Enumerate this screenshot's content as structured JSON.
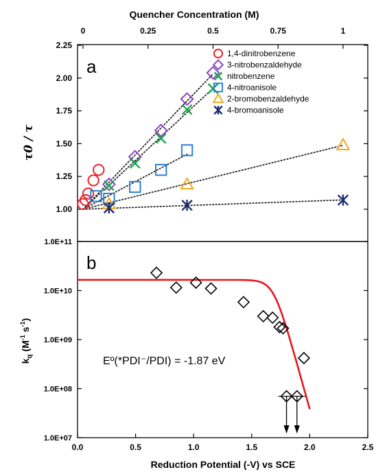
{
  "chart_data": [
    {
      "panel": "a",
      "type": "scatter",
      "x_axis_top_label": "Quencher Concentration (M)",
      "x_ticks": [
        "0",
        "0.25",
        "0.5",
        "0.75",
        "1"
      ],
      "xlim": [
        0,
        1
      ],
      "ylabel": "τ0 / τ",
      "y_ticks": [
        "1.00",
        "1.25",
        "1.50",
        "1.75",
        "2.00",
        "2.25"
      ],
      "ylim": [
        1.0,
        2.25
      ],
      "grid": false,
      "legend_placement": "top-right",
      "series": [
        {
          "name": "1,4-dinitrobenzene",
          "marker": "circle",
          "color": "#e8232b",
          "fit": false,
          "points": [
            [
              0.0,
              1.04
            ],
            [
              0.01,
              1.07
            ],
            [
              0.02,
              1.12
            ],
            [
              0.04,
              1.22
            ],
            [
              0.06,
              1.3
            ]
          ]
        },
        {
          "name": "3-nitrobenzaldehyde",
          "marker": "diamond",
          "color": "#8e44c4",
          "fit": true,
          "points": [
            [
              0.1,
              1.19
            ],
            [
              0.2,
              1.4
            ],
            [
              0.3,
              1.6
            ],
            [
              0.4,
              1.84
            ],
            [
              0.5,
              2.04
            ]
          ]
        },
        {
          "name": "nitrobenzene",
          "marker": "x",
          "color": "#1aa34a",
          "fit": true,
          "points": [
            [
              0.1,
              1.18
            ],
            [
              0.2,
              1.35
            ],
            [
              0.3,
              1.54
            ],
            [
              0.4,
              1.76
            ],
            [
              0.5,
              1.92
            ]
          ]
        },
        {
          "name": "4-nitroanisole",
          "marker": "square",
          "color": "#2a7fd4",
          "fit": true,
          "points": [
            [
              0.05,
              1.1
            ],
            [
              0.1,
              1.08
            ],
            [
              0.2,
              1.17
            ],
            [
              0.3,
              1.3
            ],
            [
              0.4,
              1.45
            ]
          ]
        },
        {
          "name": "2-bromobenzaldehyde",
          "marker": "triangle",
          "color": "#f2a81d",
          "fit": true,
          "points": [
            [
              0.1,
              1.04
            ],
            [
              0.4,
              1.19
            ],
            [
              1.0,
              1.49
            ]
          ]
        },
        {
          "name": "4-bromoanisole",
          "marker": "star",
          "color": "#1d2a6e",
          "fit": true,
          "points": [
            [
              0.1,
              1.01
            ],
            [
              0.4,
              1.03
            ],
            [
              1.0,
              1.07
            ]
          ]
        }
      ]
    },
    {
      "panel": "b",
      "type": "scatter",
      "xlabel": "Reduction Potential (-V) vs SCE",
      "x_ticks": [
        "0.0",
        "0.5",
        "1.0",
        "1.5",
        "2.0",
        "2.5"
      ],
      "xlim": [
        0,
        2.5
      ],
      "ylabel": "kq (M⁻¹ s⁻¹)",
      "ylabel_main": "k",
      "ylabel_sub": "q",
      "ylabel_rest": " (M",
      "ylabel_sup1": "-1",
      "ylabel_mid": " s",
      "ylabel_sup2": "-1",
      "ylabel_end": ")",
      "y_ticks": [
        "1.0E+07",
        "1.0E+08",
        "1.0E+09",
        "1.0E+10",
        "1.0E+11"
      ],
      "ylim": [
        10000000.0,
        100000000000.0
      ],
      "y_scale": "log",
      "grid": false,
      "annotation": "Eº(*PDI⁻/PDI) = -1.87 eV",
      "points": [
        [
          0.68,
          23000000000.0
        ],
        [
          0.85,
          11500000000.0
        ],
        [
          1.02,
          14500000000.0
        ],
        [
          1.15,
          11000000000.0
        ],
        [
          1.43,
          5800000000.0
        ],
        [
          1.6,
          3000000000.0
        ],
        [
          1.68,
          2800000000.0
        ],
        [
          1.74,
          1800000000.0
        ],
        [
          1.77,
          1700000000.0
        ],
        [
          1.95,
          420000000.0
        ],
        [
          1.8,
          70000000.0
        ],
        [
          1.89,
          70000000.0
        ]
      ],
      "upper_limit_points": [
        [
          1.8,
          70000000.0
        ],
        [
          1.89,
          70000000.0
        ]
      ],
      "fit_curve": {
        "color": "#e8141c",
        "plateau": 16500000000.0,
        "e0": 1.87
      }
    }
  ]
}
